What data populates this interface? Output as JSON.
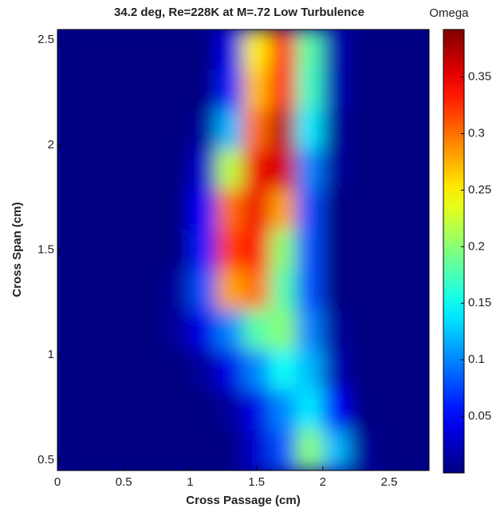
{
  "chart_data": {
    "type": "contour",
    "title": "34.2 deg, Re=228K at M=.72 Low Turbulence",
    "x_label": "Cross Passage (cm)",
    "y_label": "Cross Span (cm)",
    "colorbar_label": "Omega",
    "xlim": [
      0,
      2.8
    ],
    "xticks": [
      0,
      0.5,
      1,
      1.5,
      2,
      2.5
    ],
    "ylim": [
      0.45,
      2.55
    ],
    "yticks": [
      0.5,
      1,
      1.5,
      2,
      2.5
    ],
    "clim": [
      0,
      0.392
    ],
    "cticks": [
      0.05,
      0.1,
      0.15,
      0.2,
      0.25,
      0.3,
      0.35
    ],
    "colormap": "jet",
    "z": [
      [
        0,
        0,
        0,
        0,
        0,
        0,
        0.04,
        0.25,
        0.33,
        0.18,
        0.02,
        0,
        0,
        0
      ],
      [
        0,
        0,
        0,
        0,
        0,
        0,
        0.06,
        0.27,
        0.34,
        0.17,
        0.02,
        0,
        0,
        0
      ],
      [
        0,
        0,
        0,
        0,
        0,
        0.01,
        0.12,
        0.3,
        0.37,
        0.14,
        0.01,
        0,
        0,
        0
      ],
      [
        0,
        0,
        0,
        0,
        0,
        0.03,
        0.22,
        0.35,
        0.36,
        0.1,
        0.01,
        0,
        0,
        0
      ],
      [
        0,
        0,
        0,
        0,
        0,
        0.05,
        0.3,
        0.35,
        0.28,
        0.08,
        0,
        0,
        0,
        0
      ],
      [
        0,
        0,
        0,
        0,
        0,
        0.06,
        0.32,
        0.34,
        0.2,
        0.08,
        0,
        0,
        0,
        0
      ],
      [
        0,
        0,
        0,
        0,
        0.01,
        0.08,
        0.28,
        0.3,
        0.18,
        0.08,
        0,
        0,
        0,
        0
      ],
      [
        0,
        0,
        0,
        0,
        0.01,
        0.04,
        0.1,
        0.18,
        0.2,
        0.1,
        0.01,
        0,
        0,
        0
      ],
      [
        0,
        0,
        0,
        0,
        0,
        0.01,
        0.04,
        0.1,
        0.15,
        0.12,
        0.02,
        0,
        0,
        0
      ],
      [
        0,
        0,
        0,
        0,
        0,
        0,
        0.01,
        0.04,
        0.1,
        0.14,
        0.05,
        0,
        0,
        0
      ],
      [
        0,
        0,
        0,
        0,
        0,
        0,
        0,
        0.03,
        0.08,
        0.2,
        0.12,
        0.01,
        0,
        0
      ]
    ]
  }
}
